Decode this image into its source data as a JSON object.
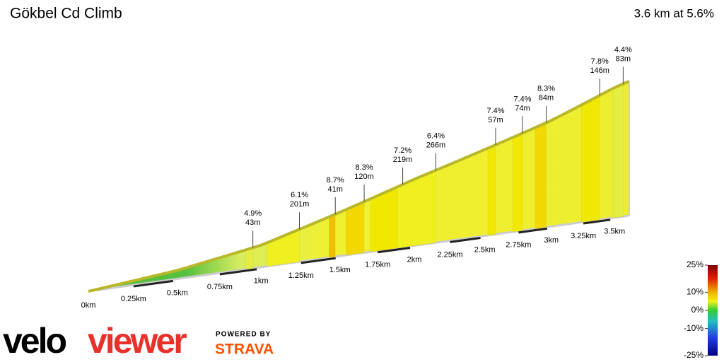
{
  "chart_data": {
    "type": "profile",
    "title": "Gökbel Cd Climb",
    "subtitle": "3.6 km at 5.6%",
    "xticks": [
      {
        "value": 0,
        "label": "0km"
      },
      {
        "value": 0.25,
        "label": "0.25km"
      },
      {
        "value": 0.5,
        "label": "0.5km"
      },
      {
        "value": 0.75,
        "label": "0.75km"
      },
      {
        "value": 1,
        "label": "1km"
      },
      {
        "value": 1.25,
        "label": "1.25km"
      },
      {
        "value": 1.5,
        "label": "1.5km"
      },
      {
        "value": 1.75,
        "label": "1.75km"
      },
      {
        "value": 2,
        "label": "2km"
      },
      {
        "value": 2.25,
        "label": "2.25km"
      },
      {
        "value": 2.5,
        "label": "2.5km"
      },
      {
        "value": 2.75,
        "label": "2.75km"
      },
      {
        "value": 3,
        "label": "3km"
      },
      {
        "value": 3.25,
        "label": "3.25km"
      },
      {
        "value": 3.5,
        "label": "3.5km"
      }
    ],
    "annotations": [
      {
        "x": 0.95,
        "grade": 4.9,
        "grade_label": "4.9%",
        "length": 43,
        "length_label": "43m"
      },
      {
        "x": 1.24,
        "grade": 6.1,
        "grade_label": "6.1%",
        "length": 201,
        "length_label": "201m"
      },
      {
        "x": 1.47,
        "grade": 8.7,
        "grade_label": "8.7%",
        "length": 41,
        "length_label": "41m"
      },
      {
        "x": 1.66,
        "grade": 8.3,
        "grade_label": "8.3%",
        "length": 120,
        "length_label": "120m"
      },
      {
        "x": 1.92,
        "grade": 7.2,
        "grade_label": "7.2%",
        "length": 219,
        "length_label": "219m"
      },
      {
        "x": 2.15,
        "grade": 6.4,
        "grade_label": "6.4%",
        "length": 266,
        "length_label": "266m"
      },
      {
        "x": 2.58,
        "grade": 7.4,
        "grade_label": "7.4%",
        "length": 57,
        "length_label": "57m"
      },
      {
        "x": 2.78,
        "grade": 7.4,
        "grade_label": "7.4%",
        "length": 74,
        "length_label": "74m"
      },
      {
        "x": 2.96,
        "grade": 8.3,
        "grade_label": "8.3%",
        "length": 84,
        "length_label": "84m"
      },
      {
        "x": 3.38,
        "grade": 7.8,
        "grade_label": "7.8%",
        "length": 146,
        "length_label": "146m"
      },
      {
        "x": 3.57,
        "grade": 4.4,
        "grade_label": "4.4%",
        "length": 83,
        "length_label": "83m"
      }
    ],
    "colorbar_ticks": [
      {
        "value": 25,
        "label": "25%"
      },
      {
        "value": 10,
        "label": "10%"
      },
      {
        "value": 0,
        "label": "0%"
      },
      {
        "value": -10,
        "label": "-10%"
      },
      {
        "value": -25,
        "label": "-25%"
      }
    ],
    "logo": {
      "velo": "velo",
      "viewer": "viewer",
      "powered": "POWERED BY",
      "strava": "STRAVA"
    }
  }
}
